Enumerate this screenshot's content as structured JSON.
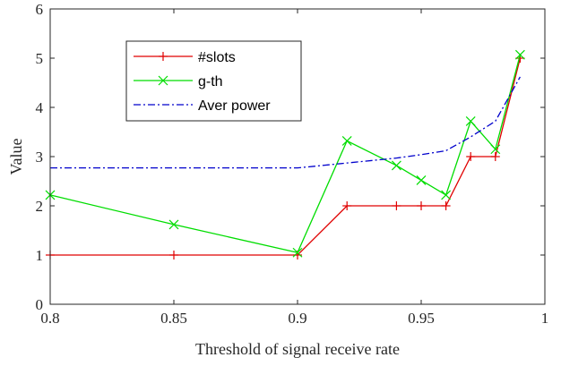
{
  "chart_data": {
    "type": "line",
    "xlabel": "Threshold of signal receive rate",
    "ylabel": "Value",
    "xlim": [
      0.8,
      1
    ],
    "ylim": [
      0,
      6
    ],
    "xticks": [
      0.8,
      0.85,
      0.9,
      0.95,
      1
    ],
    "xtick_labels": [
      "0.8",
      "0.85",
      "0.9",
      "0.95",
      "1"
    ],
    "yticks": [
      0,
      1,
      2,
      3,
      4,
      5,
      6
    ],
    "ytick_labels": [
      "0",
      "1",
      "2",
      "3",
      "4",
      "5",
      "6"
    ],
    "grid": false,
    "legend_position": "upper-left inside axes",
    "series": [
      {
        "name": "#slots",
        "color": "#e00000",
        "line_style": "solid",
        "marker": "plus",
        "x": [
          0.8,
          0.85,
          0.9,
          0.92,
          0.94,
          0.95,
          0.96,
          0.97,
          0.98,
          0.99
        ],
        "y": [
          1,
          1,
          1,
          2,
          2,
          2,
          2,
          3,
          3,
          5
        ]
      },
      {
        "name": "g-th",
        "color": "#00dd00",
        "line_style": "solid",
        "marker": "x",
        "x": [
          0.8,
          0.85,
          0.9,
          0.92,
          0.94,
          0.95,
          0.96,
          0.97,
          0.98,
          0.99
        ],
        "y": [
          2.22,
          1.62,
          1.05,
          3.32,
          2.82,
          2.52,
          2.22,
          3.72,
          3.15,
          5.07
        ]
      },
      {
        "name": "Aver power",
        "color": "#0000cc",
        "line_style": "dash-dot",
        "marker": "none",
        "x": [
          0.8,
          0.85,
          0.9,
          0.92,
          0.94,
          0.95,
          0.96,
          0.97,
          0.98,
          0.99
        ],
        "y": [
          2.77,
          2.77,
          2.77,
          2.87,
          2.97,
          3.04,
          3.12,
          3.4,
          3.72,
          4.62
        ]
      }
    ]
  }
}
